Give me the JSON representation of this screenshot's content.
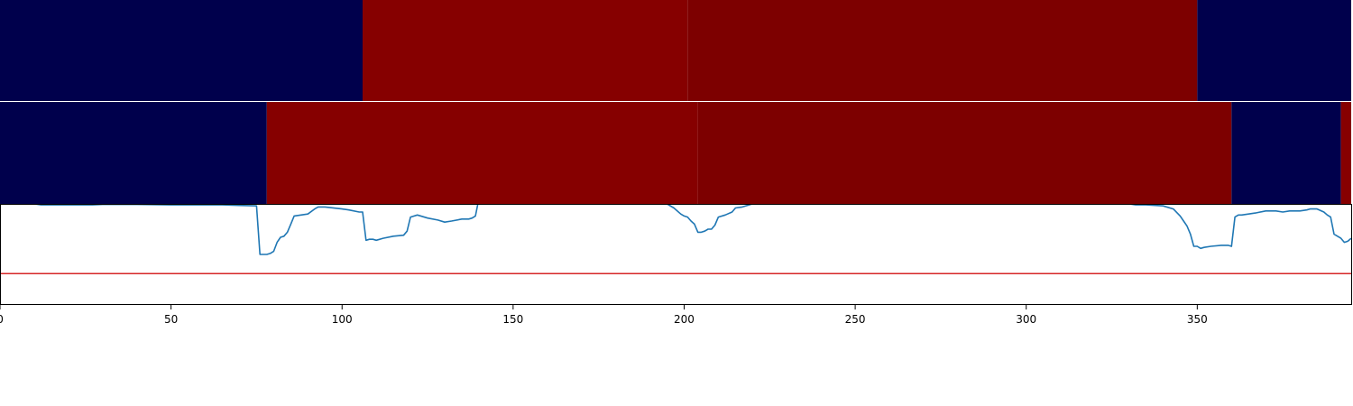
{
  "chart_data": {
    "type": "line",
    "title": "",
    "xlabel": "",
    "ylabel": "",
    "xlim": [
      0,
      395
    ],
    "ylim": [
      0,
      1
    ],
    "x_ticks": [
      0,
      50,
      100,
      150,
      200,
      250,
      300,
      350
    ],
    "x_tick_labels": [
      "0",
      "50",
      "100",
      "150",
      "200",
      "250",
      "300",
      "350"
    ],
    "grid": false,
    "legend": "none",
    "bands": [
      {
        "segments": [
          {
            "start": 0,
            "end": 106,
            "color": "#00004c"
          },
          {
            "start": 106,
            "end": 201,
            "color": "#860000"
          },
          {
            "start": 201,
            "end": 350,
            "color": "#7d0000"
          },
          {
            "start": 350,
            "end": 395,
            "color": "#00004c"
          }
        ]
      },
      {
        "segments": [
          {
            "start": 0,
            "end": 78,
            "color": "#00004c"
          },
          {
            "start": 78,
            "end": 204,
            "color": "#860000"
          },
          {
            "start": 204,
            "end": 360,
            "color": "#7d0000"
          },
          {
            "start": 360,
            "end": 392,
            "color": "#00004c"
          },
          {
            "start": 392,
            "end": 395,
            "color": "#860000"
          }
        ]
      }
    ],
    "threshold": {
      "value": 0.31,
      "color": "#d62728"
    },
    "series": [
      {
        "color": "#1f77b4",
        "x": [
          10,
          12,
          25,
          27,
          30,
          40,
          50,
          55,
          60,
          65,
          70,
          75,
          76,
          77,
          78,
          79,
          80,
          81,
          82,
          83,
          84,
          85,
          86,
          88,
          90,
          92,
          93,
          95,
          100,
          102,
          105,
          106,
          107,
          108,
          109,
          110,
          112,
          115,
          118,
          119,
          120,
          122,
          125,
          128,
          130,
          132,
          135,
          137,
          138,
          139,
          140,
          195,
          197,
          199,
          200,
          201,
          202,
          203,
          204,
          205,
          206,
          207,
          208,
          209,
          210,
          212,
          214,
          215,
          217,
          219,
          220,
          330,
          332,
          335,
          340,
          343,
          345,
          346,
          347,
          348,
          349,
          350,
          351,
          352,
          354,
          357,
          359,
          360,
          361,
          362,
          363,
          365,
          367,
          370,
          373,
          375,
          377,
          379,
          380,
          382,
          383,
          385,
          387,
          388,
          389,
          390,
          391,
          392,
          393,
          394,
          395
        ],
        "values": [
          1.0,
          0.99,
          0.99,
          0.99,
          0.995,
          0.995,
          0.99,
          0.99,
          0.99,
          0.99,
          0.985,
          0.98,
          0.5,
          0.5,
          0.5,
          0.51,
          0.53,
          0.62,
          0.67,
          0.68,
          0.72,
          0.8,
          0.88,
          0.89,
          0.9,
          0.95,
          0.97,
          0.97,
          0.95,
          0.94,
          0.92,
          0.92,
          0.64,
          0.65,
          0.65,
          0.64,
          0.66,
          0.68,
          0.69,
          0.73,
          0.87,
          0.89,
          0.86,
          0.84,
          0.82,
          0.83,
          0.85,
          0.85,
          0.86,
          0.88,
          1.05,
          1.0,
          0.96,
          0.9,
          0.88,
          0.87,
          0.83,
          0.8,
          0.72,
          0.72,
          0.73,
          0.75,
          0.75,
          0.79,
          0.87,
          0.89,
          0.92,
          0.96,
          0.97,
          0.99,
          1.0,
          1.0,
          0.99,
          0.99,
          0.98,
          0.95,
          0.88,
          0.83,
          0.78,
          0.7,
          0.58,
          0.58,
          0.56,
          0.57,
          0.58,
          0.59,
          0.59,
          0.58,
          0.87,
          0.89,
          0.89,
          0.9,
          0.91,
          0.93,
          0.93,
          0.92,
          0.93,
          0.93,
          0.93,
          0.94,
          0.95,
          0.95,
          0.92,
          0.89,
          0.87,
          0.7,
          0.68,
          0.66,
          0.62,
          0.63,
          0.66
        ]
      }
    ]
  }
}
